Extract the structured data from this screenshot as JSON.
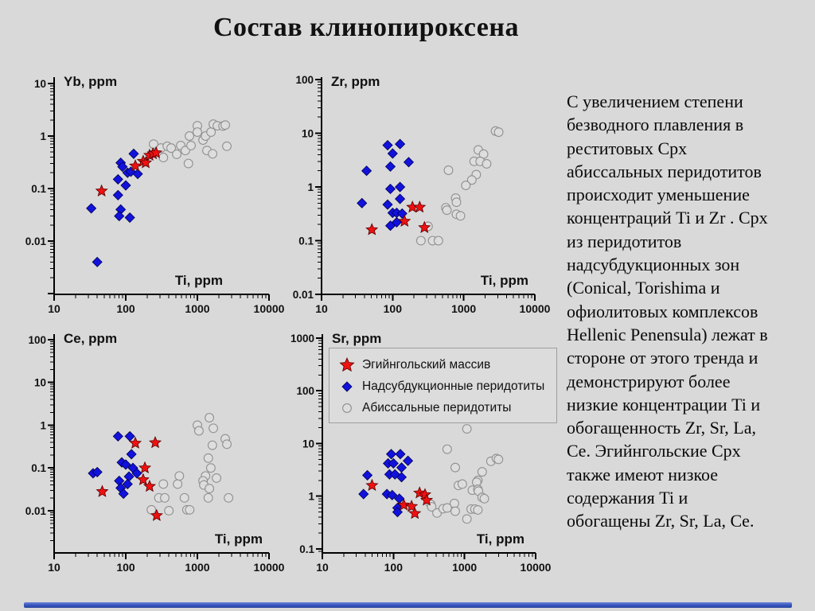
{
  "slide": {
    "title": "Состав клинопироксена",
    "background": "#d9d9d9",
    "bottom_bar_color": "#3b5ac4"
  },
  "colors": {
    "egiin_fill": "#ee1111",
    "egiin_stroke": "#5a0000",
    "supra_fill": "#1212dd",
    "supra_stroke": "#000055",
    "abyssal_fill": "#dedede",
    "abyssal_stroke": "#909090",
    "axis": "#000000",
    "tick_label": "#111111"
  },
  "legend": {
    "position": "overlapping top of Sr panel",
    "items": [
      {
        "marker": "star",
        "label": "Эгийнгольский массив"
      },
      {
        "marker": "diamond",
        "label": "Надсубдукционные перидотиты"
      },
      {
        "marker": "circle",
        "label": "Абиссальные перидотиты"
      }
    ]
  },
  "description": {
    "lines": [
      "С увеличением степени",
      "безводного плавления в",
      "реститовых Cpx",
      "абиссальных перидотитов",
      "происходит уменьшение",
      "концентраций Ti и Zr . Cpx",
      "из перидотитов",
      "надсубдукционных зон",
      "(Conical, Torishima и",
      "офиолитовых комплексов",
      "Hellenic Penensula) лежат в",
      "стороне от этого тренда и",
      "демонстрируют более",
      "низкие концентрации Ti и",
      "обогащенность Zr, Sr, La,",
      "Ce. Эгийнгольские Cpx",
      "также имеют низкое",
      "содержания Ti и",
      "обогащены Zr, Sr, La, Ce."
    ]
  },
  "chart_data": [
    {
      "id": "yb",
      "type": "scatter",
      "title": "Yb, ppm",
      "xlabel": "Ti, ppm",
      "xscale": "log",
      "yscale": "log",
      "grid": false,
      "xlim": [
        10,
        10000
      ],
      "ylim": [
        0.00097,
        13.2
      ],
      "x_ticks": [
        [
          10,
          "10"
        ],
        [
          100,
          "100"
        ],
        [
          1000,
          "1000"
        ],
        [
          10000,
          "10000"
        ]
      ],
      "y_ticks": [
        [
          10,
          "10"
        ],
        [
          1,
          "1"
        ],
        [
          0.1,
          "0.1"
        ],
        [
          0.01,
          "0.01"
        ]
      ],
      "series": [
        {
          "name": "Эгийнгольский массив",
          "marker": "star",
          "points": [
            [
              46,
              0.09
            ],
            [
              136,
              0.27
            ],
            [
              175,
              0.33
            ],
            [
              190,
              0.31
            ],
            [
              215,
              0.43
            ],
            [
              240,
              0.46
            ],
            [
              265,
              0.48
            ]
          ]
        },
        {
          "name": "Надсубдукционные перидотиты",
          "marker": "diamond",
          "points": [
            [
              33,
              0.042
            ],
            [
              40,
              0.004
            ],
            [
              78,
              0.15
            ],
            [
              78,
              0.075
            ],
            [
              85,
              0.31
            ],
            [
              90,
              0.26
            ],
            [
              85,
              0.04
            ],
            [
              81,
              0.03
            ],
            [
              100,
              0.115
            ],
            [
              106,
              0.2
            ],
            [
              118,
              0.21
            ],
            [
              114,
              0.028
            ],
            [
              129,
              0.46
            ],
            [
              147,
              0.19
            ]
          ]
        },
        {
          "name": "Абиссальные перидотиты",
          "marker": "circle",
          "points": [
            [
              245,
              0.7
            ],
            [
              310,
              0.59
            ],
            [
              335,
              0.39
            ],
            [
              380,
              0.64
            ],
            [
              430,
              0.59
            ],
            [
              515,
              0.45
            ],
            [
              585,
              0.66
            ],
            [
              680,
              0.53
            ],
            [
              775,
              1.0
            ],
            [
              750,
              0.3
            ],
            [
              815,
              0.66
            ],
            [
              1000,
              1.57
            ],
            [
              1000,
              1.19
            ],
            [
              1200,
              0.84
            ],
            [
              1300,
              1.0
            ],
            [
              1360,
              0.53
            ],
            [
              1550,
              1.19
            ],
            [
              1630,
              0.46
            ],
            [
              1670,
              1.68
            ],
            [
              1900,
              1.57
            ],
            [
              2280,
              1.55
            ],
            [
              2450,
              1.62
            ],
            [
              2580,
              0.64
            ]
          ]
        }
      ]
    },
    {
      "id": "zr",
      "type": "scatter",
      "title": "Zr, ppm",
      "xlabel": "Ti, ppm",
      "xscale": "log",
      "yscale": "log",
      "grid": false,
      "xlim": [
        10,
        10000
      ],
      "ylim": [
        0.01,
        111
      ],
      "x_ticks": [
        [
          10,
          "10"
        ],
        [
          100,
          "100"
        ],
        [
          1000,
          "1000"
        ],
        [
          10000,
          "10000"
        ]
      ],
      "y_ticks": [
        [
          100,
          "100"
        ],
        [
          10,
          "10"
        ],
        [
          1,
          "1"
        ],
        [
          0.1,
          "0.1"
        ],
        [
          0.01,
          "0.01"
        ]
      ],
      "series": [
        {
          "name": "Эгийнгольский массив",
          "marker": "star",
          "points": [
            [
              51,
              0.16
            ],
            [
              147,
              0.23
            ],
            [
              190,
              0.42
            ],
            [
              240,
              0.42
            ],
            [
              280,
              0.175
            ]
          ]
        },
        {
          "name": "Надсубдукционные перидотиты",
          "marker": "diamond",
          "points": [
            [
              85,
              6.0
            ],
            [
              127,
              6.3
            ],
            [
              100,
              4.2
            ],
            [
              93,
              2.4
            ],
            [
              168,
              2.9
            ],
            [
              43,
              2.0
            ],
            [
              37,
              0.5
            ],
            [
              93,
              0.92
            ],
            [
              127,
              1.0
            ],
            [
              85,
              0.47
            ],
            [
              127,
              0.6
            ],
            [
              100,
              0.33
            ],
            [
              114,
              0.33
            ],
            [
              136,
              0.32
            ],
            [
              93,
              0.19
            ],
            [
              114,
              0.22
            ]
          ]
        },
        {
          "name": "Абиссальные перидотиты",
          "marker": "circle",
          "points": [
            [
              610,
              2.05
            ],
            [
              2800,
              11
            ],
            [
              3100,
              10.5
            ],
            [
              1600,
              4.9
            ],
            [
              1900,
              4.1
            ],
            [
              1400,
              3.0
            ],
            [
              1700,
              3.0
            ],
            [
              2100,
              2.7
            ],
            [
              1500,
              1.7
            ],
            [
              1300,
              1.35
            ],
            [
              1070,
              1.07
            ],
            [
              770,
              0.62
            ],
            [
              790,
              0.52
            ],
            [
              560,
              0.41
            ],
            [
              580,
              0.37
            ],
            [
              790,
              0.31
            ],
            [
              900,
              0.29
            ],
            [
              315,
              0.185
            ],
            [
              250,
              0.1
            ],
            [
              365,
              0.1
            ],
            [
              440,
              0.1
            ]
          ]
        }
      ]
    },
    {
      "id": "ce",
      "type": "scatter",
      "title": "Ce, ppm",
      "xlabel": "Ti, ppm",
      "xscale": "log",
      "yscale": "log",
      "grid": false,
      "xlim": [
        10,
        10000
      ],
      "ylim": [
        0.00103,
        135
      ],
      "x_ticks": [
        [
          10,
          "10"
        ],
        [
          100,
          "100"
        ],
        [
          1000,
          "1000"
        ],
        [
          10000,
          "10000"
        ]
      ],
      "y_ticks": [
        [
          100,
          "100"
        ],
        [
          10,
          "10"
        ],
        [
          1,
          "1"
        ],
        [
          0.1,
          "0.1"
        ],
        [
          0.01,
          "0.01"
        ]
      ],
      "series": [
        {
          "name": "Эгийнгольский массив",
          "marker": "star",
          "points": [
            [
              136,
              0.38
            ],
            [
              258,
              0.39
            ],
            [
              185,
              0.1
            ],
            [
              175,
              0.053
            ],
            [
              215,
              0.037
            ],
            [
              47,
              0.028
            ],
            [
              270,
              0.0077
            ]
          ]
        },
        {
          "name": "Надсубдукционные перидотиты",
          "marker": "diamond",
          "points": [
            [
              78,
              0.55
            ],
            [
              114,
              0.55
            ],
            [
              120,
              0.21
            ],
            [
              88,
              0.135
            ],
            [
              100,
              0.12
            ],
            [
              126,
              0.1
            ],
            [
              35,
              0.075
            ],
            [
              40,
              0.08
            ],
            [
              143,
              0.075
            ],
            [
              111,
              0.063
            ],
            [
              81,
              0.05
            ],
            [
              106,
              0.042
            ],
            [
              85,
              0.034
            ],
            [
              93,
              0.025
            ]
          ]
        },
        {
          "name": "Абиссальные перидотиты",
          "marker": "circle",
          "points": [
            [
              1470,
              1.5
            ],
            [
              1000,
              1.0
            ],
            [
              1050,
              0.74
            ],
            [
              1670,
              0.85
            ],
            [
              2450,
              0.48
            ],
            [
              2580,
              0.36
            ],
            [
              1620,
              0.34
            ],
            [
              1420,
              0.17
            ],
            [
              1540,
              0.1
            ],
            [
              1300,
              0.065
            ],
            [
              1850,
              0.058
            ],
            [
              1200,
              0.05
            ],
            [
              1230,
              0.04
            ],
            [
              1470,
              0.033
            ],
            [
              560,
              0.065
            ],
            [
              530,
              0.042
            ],
            [
              335,
              0.042
            ],
            [
              290,
              0.02
            ],
            [
              350,
              0.02
            ],
            [
              1420,
              0.02
            ],
            [
              2720,
              0.02
            ],
            [
              660,
              0.02
            ],
            [
              228,
              0.0105
            ],
            [
              400,
              0.01
            ],
            [
              715,
              0.0105
            ],
            [
              780,
              0.0105
            ]
          ]
        }
      ]
    },
    {
      "id": "sr",
      "type": "scatter",
      "title": "Sr, ppm",
      "xlabel": "Ti, ppm",
      "xscale": "log",
      "yscale": "log",
      "grid": false,
      "xlim": [
        10,
        10000
      ],
      "ylim": [
        0.084,
        1190
      ],
      "x_ticks": [
        [
          10,
          "10"
        ],
        [
          100,
          "100"
        ],
        [
          1000,
          "1000"
        ],
        [
          10000,
          "10000"
        ]
      ],
      "y_ticks": [
        [
          1000,
          "1000"
        ],
        [
          100,
          "100"
        ],
        [
          10,
          "10"
        ],
        [
          1,
          "1"
        ],
        [
          0.1,
          "0.1"
        ]
      ],
      "series": [
        {
          "name": "Эгийнгольский массив",
          "marker": "star",
          "points": [
            [
              50,
              1.6
            ],
            [
              233,
              1.15
            ],
            [
              278,
              1.07
            ],
            [
              293,
              0.84
            ],
            [
              140,
              0.68
            ],
            [
              180,
              0.64
            ],
            [
              200,
              0.47
            ]
          ]
        },
        {
          "name": "Надсубдукционные перидотиты",
          "marker": "diamond",
          "points": [
            [
              93,
              6.3
            ],
            [
              125,
              6.3
            ],
            [
              84,
              4.2
            ],
            [
              100,
              4.2
            ],
            [
              130,
              3.5
            ],
            [
              160,
              4.7
            ],
            [
              88,
              2.6
            ],
            [
              105,
              2.6
            ],
            [
              130,
              2.3
            ],
            [
              43,
              2.5
            ],
            [
              38,
              1.1
            ],
            [
              81,
              1.1
            ],
            [
              96,
              1.05
            ],
            [
              121,
              0.9
            ],
            [
              114,
              0.6
            ],
            [
              114,
              0.5
            ]
          ]
        },
        {
          "name": "Абиссальные перидотиты",
          "marker": "circle",
          "points": [
            [
              1080,
              19
            ],
            [
              570,
              7.8
            ],
            [
              740,
              3.5
            ],
            [
              1770,
              2.9
            ],
            [
              2350,
              4.6
            ],
            [
              2800,
              5.2
            ],
            [
              3000,
              5.0
            ],
            [
              1540,
              2.0
            ],
            [
              1480,
              1.85
            ],
            [
              820,
              1.6
            ],
            [
              930,
              1.7
            ],
            [
              1290,
              1.3
            ],
            [
              1540,
              1.35
            ],
            [
              1570,
              1.25
            ],
            [
              1770,
              0.95
            ],
            [
              1900,
              0.9
            ],
            [
              720,
              0.73
            ],
            [
              740,
              0.52
            ],
            [
              335,
              0.7
            ],
            [
              345,
              0.63
            ],
            [
              410,
              0.48
            ],
            [
              500,
              0.58
            ],
            [
              570,
              0.6
            ],
            [
              1240,
              0.57
            ],
            [
              1400,
              0.57
            ],
            [
              1540,
              0.55
            ],
            [
              1080,
              0.37
            ]
          ]
        }
      ]
    }
  ]
}
